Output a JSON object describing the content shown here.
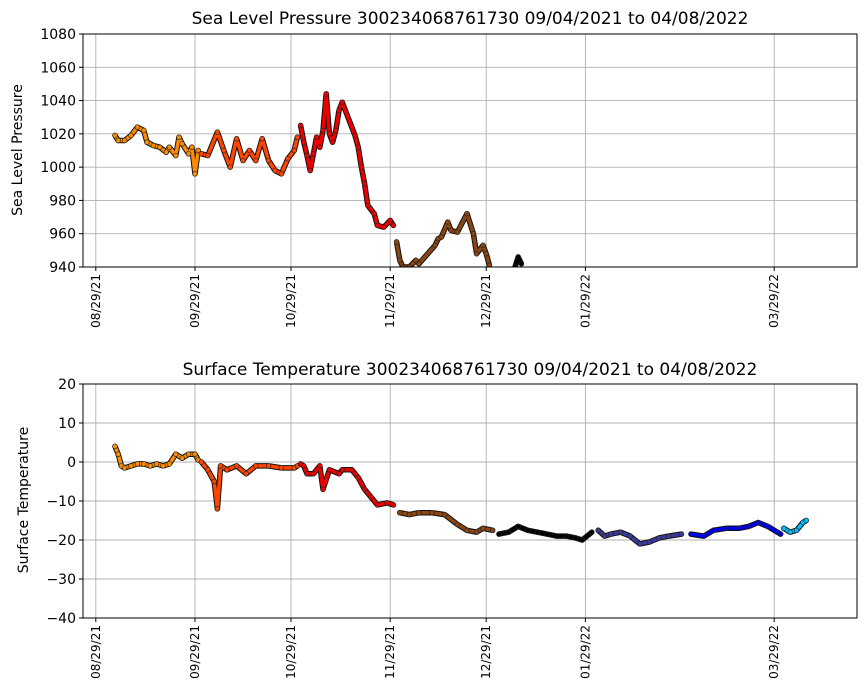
{
  "charts": [
    {
      "title": "Sea Level Pressure 300234068761730  09/04/2021 to 04/08/2022",
      "ylabel": "Sea Level Pressure",
      "yticks": [
        "940",
        "960",
        "980",
        "1000",
        "1020",
        "1040",
        "1060",
        "1080"
      ]
    },
    {
      "title": "Surface Temperature 300234068761730  09/04/2021 to 04/08/2022",
      "ylabel": "Surface Temperature",
      "yticks": [
        "−40",
        "−30",
        "−20",
        "−10",
        "0",
        "10",
        "20"
      ]
    }
  ],
  "xticks": [
    "08/29/21",
    "09/29/21",
    "10/29/21",
    "11/29/21",
    "12/29/21",
    "01/29/22",
    "03/29/22"
  ],
  "colors": {
    "sep": "#ff8c00",
    "oct": "#ff4500",
    "nov": "#ee0000",
    "dec": "#8b4513",
    "jan": "#000000",
    "feb": "#3a3a98",
    "mar": "#0000ee",
    "apr": "#00bfff",
    "grid": "#b0b0b0"
  },
  "chart_data": [
    {
      "type": "scatter",
      "title": "Sea Level Pressure 300234068761730  09/04/2021 to 04/08/2022",
      "xlabel": "",
      "ylabel": "Sea Level Pressure",
      "x_type": "date",
      "xlim": [
        "2021-08-25",
        "2022-04-19"
      ],
      "ylim": [
        940,
        1080
      ],
      "grid": true,
      "series": [
        {
          "color_key": "sep",
          "points": [
            [
              "2021-09-04",
              1019
            ],
            [
              "2021-09-05",
              1016
            ],
            [
              "2021-09-07",
              1016
            ],
            [
              "2021-09-09",
              1019
            ],
            [
              "2021-09-11",
              1024
            ],
            [
              "2021-09-13",
              1022
            ],
            [
              "2021-09-14",
              1015
            ],
            [
              "2021-09-16",
              1013
            ],
            [
              "2021-09-18",
              1012
            ],
            [
              "2021-09-20",
              1009
            ],
            [
              "2021-09-21",
              1012
            ],
            [
              "2021-09-23",
              1007
            ],
            [
              "2021-09-24",
              1018
            ],
            [
              "2021-09-25",
              1014
            ],
            [
              "2021-09-27",
              1008
            ],
            [
              "2021-09-28",
              1012
            ],
            [
              "2021-09-29",
              996
            ],
            [
              "2021-09-30",
              1010
            ]
          ]
        },
        {
          "color_key": "oct",
          "points": [
            [
              "2021-10-01",
              1008
            ],
            [
              "2021-10-03",
              1007
            ],
            [
              "2021-10-06",
              1021
            ],
            [
              "2021-10-08",
              1010
            ],
            [
              "2021-10-10",
              1000
            ],
            [
              "2021-10-12",
              1017
            ],
            [
              "2021-10-14",
              1004
            ],
            [
              "2021-10-16",
              1010
            ],
            [
              "2021-10-18",
              1004
            ],
            [
              "2021-10-20",
              1017
            ],
            [
              "2021-10-22",
              1004
            ],
            [
              "2021-10-24",
              998
            ],
            [
              "2021-10-26",
              996
            ],
            [
              "2021-10-28",
              1005
            ],
            [
              "2021-10-30",
              1010
            ],
            [
              "2021-10-31",
              1018
            ]
          ]
        },
        {
          "color_key": "nov",
          "points": [
            [
              "2021-11-01",
              1025
            ],
            [
              "2021-11-02",
              1015
            ],
            [
              "2021-11-03",
              1007
            ],
            [
              "2021-11-04",
              998
            ],
            [
              "2021-11-05",
              1008
            ],
            [
              "2021-11-06",
              1018
            ],
            [
              "2021-11-07",
              1012
            ],
            [
              "2021-11-08",
              1022
            ],
            [
              "2021-11-09",
              1044
            ],
            [
              "2021-11-10",
              1020
            ],
            [
              "2021-11-11",
              1015
            ],
            [
              "2021-11-12",
              1022
            ],
            [
              "2021-11-13",
              1034
            ],
            [
              "2021-11-14",
              1039
            ],
            [
              "2021-11-18",
              1019
            ],
            [
              "2021-11-19",
              1012
            ],
            [
              "2021-11-20",
              1000
            ],
            [
              "2021-11-21",
              990
            ],
            [
              "2021-11-22",
              977
            ],
            [
              "2021-11-24",
              972
            ],
            [
              "2021-11-25",
              965
            ],
            [
              "2021-11-27",
              964
            ],
            [
              "2021-11-29",
              968
            ],
            [
              "2021-11-30",
              965
            ]
          ]
        },
        {
          "color_key": "dec",
          "points": [
            [
              "2021-12-01",
              955
            ],
            [
              "2021-12-02",
              944
            ],
            [
              "2021-12-03",
              940
            ],
            [
              "2021-12-05",
              940
            ],
            [
              "2021-12-07",
              944
            ],
            [
              "2021-12-08",
              942
            ],
            [
              "2021-12-13",
              953
            ],
            [
              "2021-12-14",
              957
            ],
            [
              "2021-12-15",
              958
            ],
            [
              "2021-12-17",
              967
            ],
            [
              "2021-12-18",
              962
            ],
            [
              "2021-12-20",
              961
            ],
            [
              "2021-12-23",
              972
            ],
            [
              "2021-12-25",
              960
            ],
            [
              "2021-12-26",
              948
            ],
            [
              "2021-12-28",
              953
            ],
            [
              "2021-12-29",
              948
            ],
            [
              "2021-12-30",
              941
            ]
          ]
        },
        {
          "color_key": "jan",
          "points": [
            [
              "2022-01-07",
              940
            ],
            [
              "2022-01-08",
              946
            ],
            [
              "2022-01-09",
              942
            ]
          ]
        }
      ]
    },
    {
      "type": "scatter",
      "title": "Surface Temperature 300234068761730  09/04/2021 to 04/08/2022",
      "xlabel": "",
      "ylabel": "Surface Temperature",
      "x_type": "date",
      "xlim": [
        "2021-08-25",
        "2022-04-19"
      ],
      "ylim": [
        -40,
        20
      ],
      "grid": true,
      "series": [
        {
          "color_key": "sep",
          "points": [
            [
              "2021-09-04",
              4
            ],
            [
              "2021-09-05",
              2
            ],
            [
              "2021-09-06",
              -1
            ],
            [
              "2021-09-07",
              -1.5
            ],
            [
              "2021-09-09",
              -1
            ],
            [
              "2021-09-11",
              -0.5
            ],
            [
              "2021-09-13",
              -0.5
            ],
            [
              "2021-09-15",
              -1
            ],
            [
              "2021-09-17",
              -0.5
            ],
            [
              "2021-09-19",
              -1
            ],
            [
              "2021-09-21",
              -0.5
            ],
            [
              "2021-09-23",
              2
            ],
            [
              "2021-09-25",
              1
            ],
            [
              "2021-09-27",
              2
            ],
            [
              "2021-09-29",
              2
            ],
            [
              "2021-09-30",
              0.5
            ]
          ]
        },
        {
          "color_key": "oct",
          "points": [
            [
              "2021-10-01",
              0
            ],
            [
              "2021-10-03",
              -2
            ],
            [
              "2021-10-05",
              -5
            ],
            [
              "2021-10-06",
              -12
            ],
            [
              "2021-10-07",
              -1
            ],
            [
              "2021-10-09",
              -2
            ],
            [
              "2021-10-12",
              -1
            ],
            [
              "2021-10-15",
              -3
            ],
            [
              "2021-10-18",
              -1
            ],
            [
              "2021-10-22",
              -1
            ],
            [
              "2021-10-26",
              -1.5
            ],
            [
              "2021-10-30",
              -1.5
            ],
            [
              "2021-10-31",
              -1
            ]
          ]
        },
        {
          "color_key": "nov",
          "points": [
            [
              "2021-11-01",
              -0.5
            ],
            [
              "2021-11-02",
              -1
            ],
            [
              "2021-11-03",
              -3
            ],
            [
              "2021-11-05",
              -3
            ],
            [
              "2021-11-07",
              -1
            ],
            [
              "2021-11-08",
              -7
            ],
            [
              "2021-11-10",
              -2
            ],
            [
              "2021-11-13",
              -3
            ],
            [
              "2021-11-14",
              -2
            ],
            [
              "2021-11-17",
              -2
            ],
            [
              "2021-11-19",
              -4
            ],
            [
              "2021-11-21",
              -7
            ],
            [
              "2021-11-23",
              -9
            ],
            [
              "2021-11-25",
              -11
            ],
            [
              "2021-11-28",
              -10.5
            ],
            [
              "2021-11-30",
              -11
            ]
          ]
        },
        {
          "color_key": "dec",
          "points": [
            [
              "2021-12-02",
              -13
            ],
            [
              "2021-12-05",
              -13.5
            ],
            [
              "2021-12-08",
              -13
            ],
            [
              "2021-12-12",
              -13
            ],
            [
              "2021-12-16",
              -13.5
            ],
            [
              "2021-12-20",
              -16
            ],
            [
              "2021-12-23",
              -17.5
            ],
            [
              "2021-12-26",
              -18
            ],
            [
              "2021-12-28",
              -17
            ],
            [
              "2021-12-31",
              -17.5
            ]
          ]
        },
        {
          "color_key": "jan",
          "points": [
            [
              "2022-01-02",
              -18.5
            ],
            [
              "2022-01-05",
              -18
            ],
            [
              "2022-01-08",
              -16.5
            ],
            [
              "2022-01-11",
              -17.5
            ],
            [
              "2022-01-14",
              -18
            ],
            [
              "2022-01-17",
              -18.5
            ],
            [
              "2022-01-20",
              -19
            ],
            [
              "2022-01-23",
              -19
            ],
            [
              "2022-01-26",
              -19.5
            ],
            [
              "2022-01-28",
              -20
            ],
            [
              "2022-01-31",
              -18
            ]
          ]
        },
        {
          "color_key": "feb",
          "points": [
            [
              "2022-02-02",
              -17.5
            ],
            [
              "2022-02-04",
              -19
            ],
            [
              "2022-02-06",
              -18.5
            ],
            [
              "2022-02-09",
              -18
            ],
            [
              "2022-02-12",
              -19
            ],
            [
              "2022-02-15",
              -21
            ],
            [
              "2022-02-18",
              -20.5
            ],
            [
              "2022-02-21",
              -19.5
            ],
            [
              "2022-02-24",
              -19
            ],
            [
              "2022-02-28",
              -18.5
            ]
          ]
        },
        {
          "color_key": "mar",
          "points": [
            [
              "2022-03-03",
              -18.5
            ],
            [
              "2022-03-07",
              -19
            ],
            [
              "2022-03-10",
              -17.5
            ],
            [
              "2022-03-14",
              -17
            ],
            [
              "2022-03-18",
              -17
            ],
            [
              "2022-03-21",
              -16.5
            ],
            [
              "2022-03-24",
              -15.5
            ],
            [
              "2022-03-27",
              -16.5
            ],
            [
              "2022-03-30",
              -18
            ],
            [
              "2022-03-31",
              -18.5
            ]
          ]
        },
        {
          "color_key": "apr",
          "points": [
            [
              "2022-04-01",
              -17
            ],
            [
              "2022-04-03",
              -18
            ],
            [
              "2022-04-05",
              -17.5
            ],
            [
              "2022-04-07",
              -15.5
            ],
            [
              "2022-04-08",
              -15
            ]
          ]
        }
      ]
    }
  ]
}
